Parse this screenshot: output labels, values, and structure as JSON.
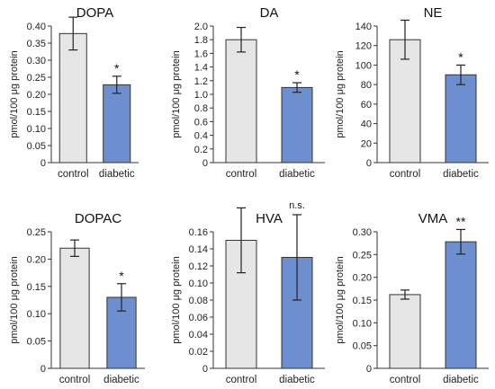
{
  "chart_data": [
    {
      "type": "bar",
      "title": "DOPA",
      "ylabel": "pmol/100 μg protein",
      "categories": [
        "control",
        "diabetic"
      ],
      "values": [
        0.378,
        0.228
      ],
      "errors": [
        0.048,
        0.025
      ],
      "significance": [
        "",
        "*"
      ],
      "ylim": [
        0,
        0.4
      ],
      "yticks": [
        "0",
        "0.05",
        "0.10",
        "0.15",
        "0.20",
        "0.25",
        "0.30",
        "0.35",
        "0.40"
      ],
      "colors": [
        "#e6e6e6",
        "#6d8fd0"
      ]
    },
    {
      "type": "bar",
      "title": "DA",
      "ylabel": "pmol/100 μg protein",
      "categories": [
        "control",
        "diabetic"
      ],
      "values": [
        1.8,
        1.1
      ],
      "errors": [
        0.18,
        0.07
      ],
      "significance": [
        "",
        "*"
      ],
      "ylim": [
        0,
        2.0
      ],
      "yticks": [
        "0",
        "0.2",
        "0.4",
        "0.6",
        "0.8",
        "1.0",
        "1.2",
        "1.4",
        "1.6",
        "1.8",
        "2.0"
      ],
      "colors": [
        "#e6e6e6",
        "#6d8fd0"
      ]
    },
    {
      "type": "bar",
      "title": "NE",
      "ylabel": "pmol/100 μg protein",
      "categories": [
        "control",
        "diabetic"
      ],
      "values": [
        126,
        90
      ],
      "errors": [
        20,
        10
      ],
      "significance": [
        "",
        "*"
      ],
      "ylim": [
        0,
        140
      ],
      "yticks": [
        "0",
        "20",
        "40",
        "60",
        "80",
        "100",
        "120",
        "140"
      ],
      "colors": [
        "#e6e6e6",
        "#6d8fd0"
      ]
    },
    {
      "type": "bar",
      "title": "DOPAC",
      "ylabel": "pmol/100 μg protein",
      "categories": [
        "control",
        "diabetic"
      ],
      "values": [
        0.22,
        0.13
      ],
      "errors": [
        0.015,
        0.025
      ],
      "significance": [
        "",
        "*"
      ],
      "ylim": [
        0,
        0.25
      ],
      "yticks": [
        "0",
        "0.05",
        "0.10",
        "0.15",
        "0.20",
        "0.25"
      ],
      "colors": [
        "#e6e6e6",
        "#6d8fd0"
      ]
    },
    {
      "type": "bar",
      "title": "HVA",
      "ylabel": "pmol/100 μg protein",
      "categories": [
        "control",
        "diabetic"
      ],
      "values": [
        0.15,
        0.13
      ],
      "errors": [
        0.038,
        0.05
      ],
      "significance": [
        "",
        "n.s."
      ],
      "ylim": [
        0,
        0.16
      ],
      "yticks": [
        "0",
        "0.02",
        "0.04",
        "0.06",
        "0.08",
        "0.10",
        "0.12",
        "0.14",
        "0.16"
      ],
      "colors": [
        "#e6e6e6",
        "#6d8fd0"
      ]
    },
    {
      "type": "bar",
      "title": "VMA",
      "ylabel": "pmol/100 μg protein",
      "categories": [
        "control",
        "diabetic"
      ],
      "values": [
        0.162,
        0.278
      ],
      "errors": [
        0.01,
        0.027
      ],
      "significance": [
        "",
        "**"
      ],
      "ylim": [
        0,
        0.3
      ],
      "yticks": [
        "0",
        "0.05",
        "0.10",
        "0.15",
        "0.20",
        "0.25",
        "0.30"
      ],
      "colors": [
        "#e6e6e6",
        "#6d8fd0"
      ]
    }
  ]
}
